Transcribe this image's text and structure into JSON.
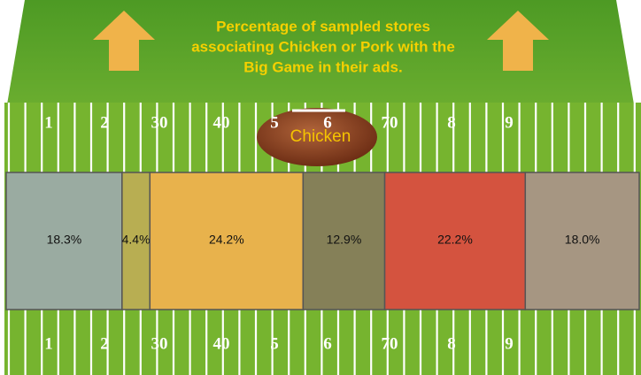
{
  "chart_data": {
    "type": "bar",
    "orientation": "horizontal",
    "stacked": true,
    "title_lines": [
      "Percentage of sampled stores",
      "associating Chicken or Pork with the",
      "Big Game in their ads."
    ],
    "annotation": "Chicken",
    "values": [
      18.3,
      4.4,
      24.2,
      12.9,
      22.2,
      18.0
    ],
    "value_labels": [
      "18.3%",
      "4.4%",
      "24.2%",
      "12.9%",
      "22.2%",
      "18.0%"
    ],
    "colors": [
      "#9aaba1",
      "#b8ae52",
      "#e8b24c",
      "#858058",
      "#d4533f",
      "#a69682"
    ],
    "xlim": [
      0,
      100
    ]
  },
  "field": {
    "numbers": [
      "1",
      "2",
      "30",
      "40",
      "5",
      "6",
      "70",
      "8",
      "9"
    ]
  }
}
